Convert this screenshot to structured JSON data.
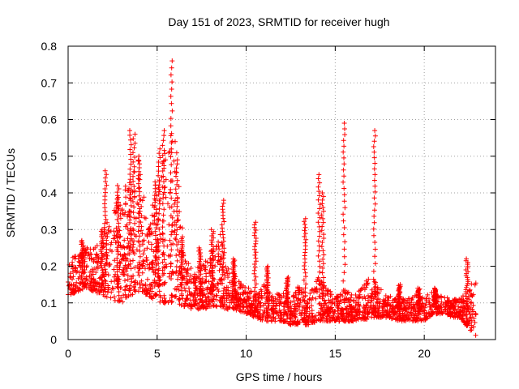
{
  "chart_data": {
    "type": "scatter",
    "title": "Day 151 of 2023, SRMTID for receiver hugh",
    "xlabel": "GPS time / hours",
    "ylabel": "SRMTID / TECUs",
    "xlim": [
      0,
      24
    ],
    "ylim": [
      0,
      0.8
    ],
    "xticks": [
      0,
      5,
      10,
      15,
      20
    ],
    "xtick_labels": [
      "0",
      "5",
      "10",
      "15",
      "20"
    ],
    "yticks": [
      0,
      0.1,
      0.2,
      0.3,
      0.4,
      0.5,
      0.6,
      0.7,
      0.8
    ],
    "ytick_labels": [
      "0",
      "0.1",
      "0.2",
      "0.3",
      "0.4",
      "0.5",
      "0.6",
      "0.7",
      "0.8"
    ],
    "grid": true,
    "marker": "+",
    "marker_color": "#ff0000",
    "x_range_of_data": [
      0,
      22.9
    ],
    "envelope": {
      "x": [
        0,
        0.5,
        1,
        1.5,
        2,
        2.5,
        3,
        3.5,
        4,
        4.5,
        5,
        5.5,
        6,
        6.5,
        7,
        7.5,
        8,
        8.5,
        9,
        9.5,
        10,
        10.5,
        11,
        11.5,
        12,
        12.5,
        13,
        13.5,
        14,
        14.5,
        15,
        15.5,
        16,
        16.5,
        17,
        17.5,
        18,
        18.5,
        19,
        19.5,
        20,
        20.5,
        21,
        21.5,
        22,
        22.5,
        22.9
      ],
      "low": [
        0.12,
        0.13,
        0.14,
        0.13,
        0.12,
        0.1,
        0.1,
        0.12,
        0.13,
        0.12,
        0.1,
        0.1,
        0.1,
        0.09,
        0.08,
        0.08,
        0.09,
        0.09,
        0.08,
        0.08,
        0.07,
        0.06,
        0.05,
        0.05,
        0.05,
        0.04,
        0.04,
        0.04,
        0.05,
        0.05,
        0.05,
        0.05,
        0.05,
        0.05,
        0.06,
        0.06,
        0.06,
        0.05,
        0.05,
        0.05,
        0.05,
        0.07,
        0.07,
        0.06,
        0.06,
        0.03,
        0.01
      ],
      "high": [
        0.22,
        0.23,
        0.25,
        0.25,
        0.3,
        0.38,
        0.4,
        0.45,
        0.5,
        0.3,
        0.45,
        0.55,
        0.6,
        0.25,
        0.2,
        0.2,
        0.25,
        0.3,
        0.2,
        0.17,
        0.15,
        0.12,
        0.15,
        0.12,
        0.13,
        0.12,
        0.15,
        0.12,
        0.18,
        0.14,
        0.12,
        0.14,
        0.12,
        0.14,
        0.18,
        0.14,
        0.12,
        0.12,
        0.11,
        0.12,
        0.12,
        0.13,
        0.12,
        0.11,
        0.11,
        0.14,
        0.18
      ]
    },
    "spikes": [
      {
        "x": 0.8,
        "peak": 0.27
      },
      {
        "x": 1.9,
        "peak": 0.3
      },
      {
        "x": 2.1,
        "peak": 0.46
      },
      {
        "x": 2.8,
        "peak": 0.42
      },
      {
        "x": 3.5,
        "peak": 0.57
      },
      {
        "x": 3.7,
        "peak": 0.56
      },
      {
        "x": 4.0,
        "peak": 0.5
      },
      {
        "x": 4.9,
        "peak": 0.43
      },
      {
        "x": 5.1,
        "peak": 0.52
      },
      {
        "x": 5.35,
        "peak": 0.57
      },
      {
        "x": 5.8,
        "peak": 0.76
      },
      {
        "x": 6.1,
        "peak": 0.49
      },
      {
        "x": 6.4,
        "peak": 0.28
      },
      {
        "x": 7.4,
        "peak": 0.25
      },
      {
        "x": 8.1,
        "peak": 0.3
      },
      {
        "x": 8.7,
        "peak": 0.38
      },
      {
        "x": 9.3,
        "peak": 0.22
      },
      {
        "x": 10.5,
        "peak": 0.32
      },
      {
        "x": 11.2,
        "peak": 0.2
      },
      {
        "x": 12.3,
        "peak": 0.17
      },
      {
        "x": 13.3,
        "peak": 0.33
      },
      {
        "x": 14.1,
        "peak": 0.45
      },
      {
        "x": 14.3,
        "peak": 0.4
      },
      {
        "x": 15.5,
        "peak": 0.59
      },
      {
        "x": 17.2,
        "peak": 0.57
      },
      {
        "x": 18.6,
        "peak": 0.15
      },
      {
        "x": 19.7,
        "peak": 0.14
      },
      {
        "x": 20.6,
        "peak": 0.14
      },
      {
        "x": 22.4,
        "peak": 0.22
      }
    ]
  }
}
